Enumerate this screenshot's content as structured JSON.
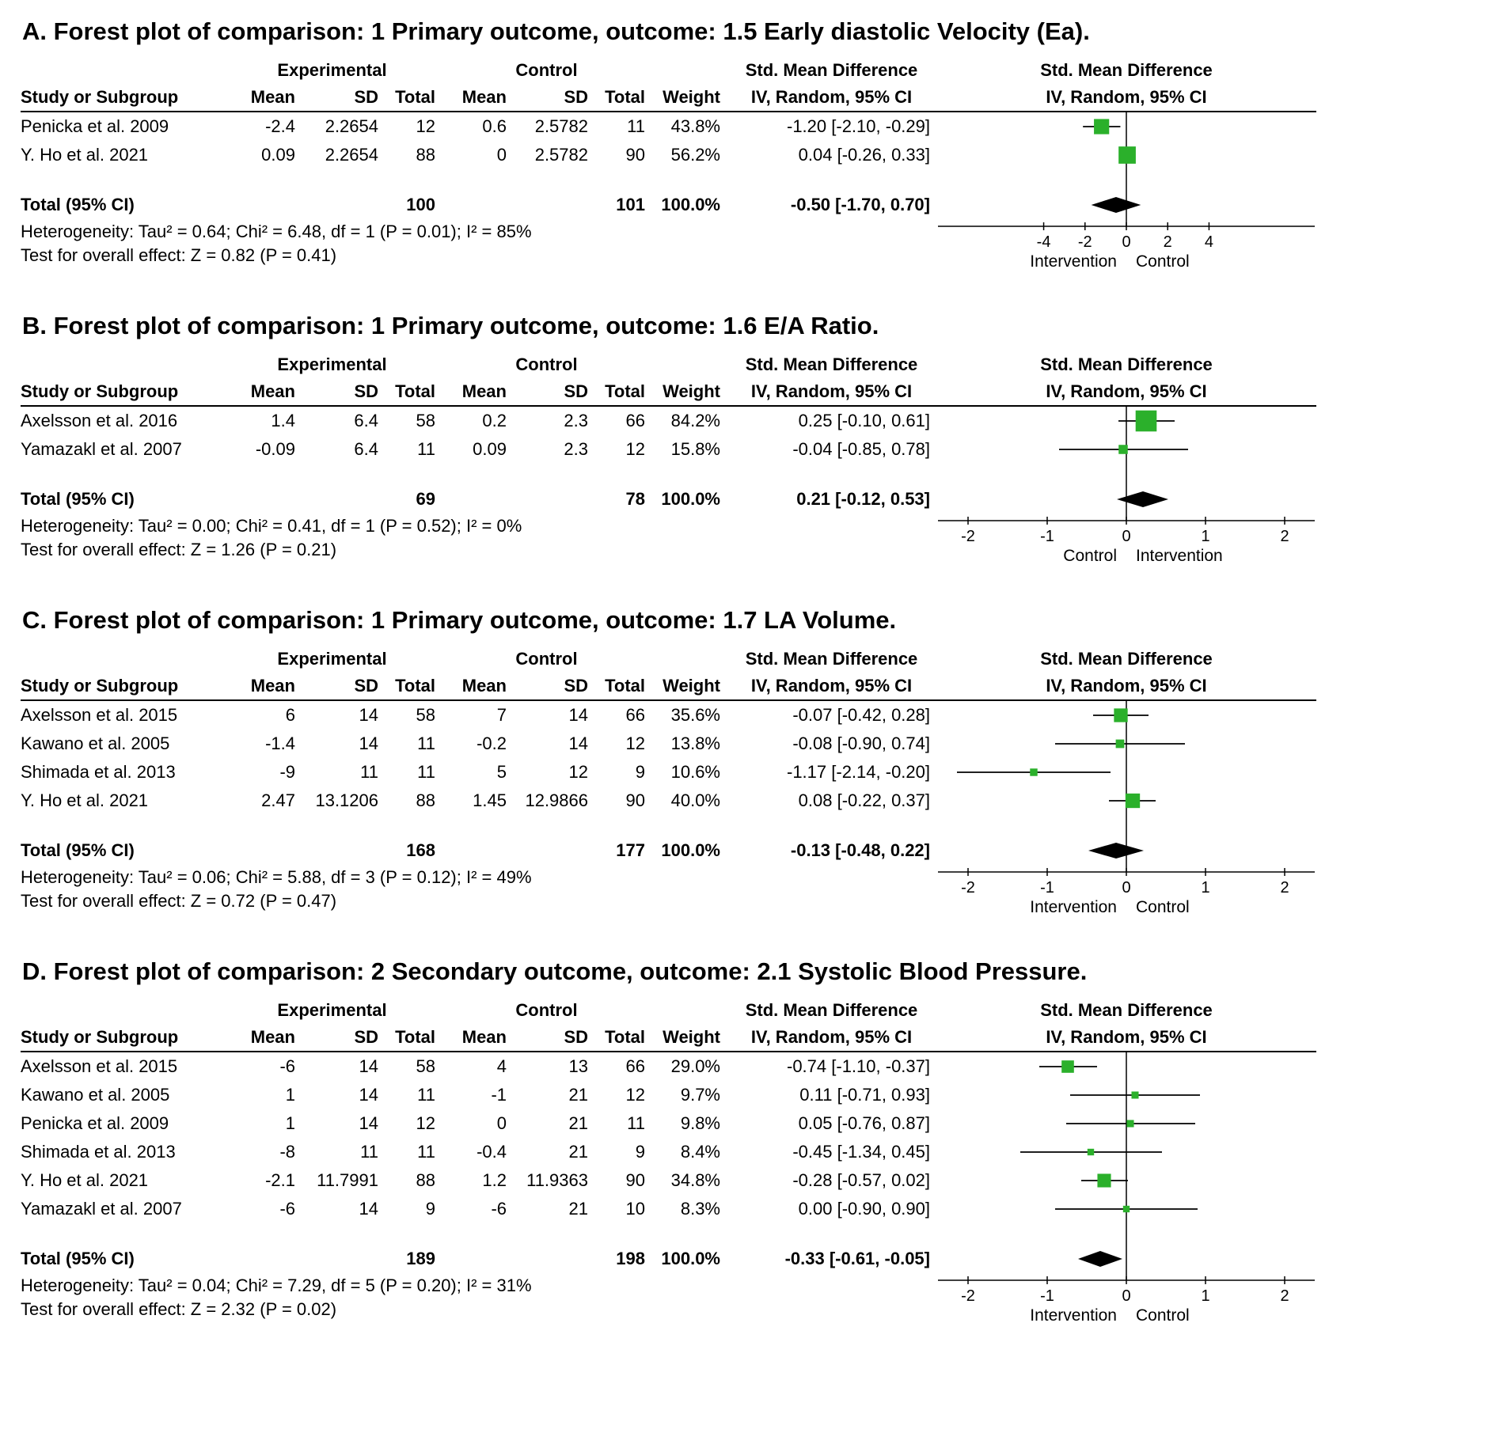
{
  "figure": {
    "marker_color": "#2bb02b",
    "line_color": "#000000",
    "diamond_color": "#000000"
  },
  "table_headers": {
    "study": "Study or Subgroup",
    "experimental": "Experimental",
    "control": "Control",
    "mean": "Mean",
    "sd": "SD",
    "total": "Total",
    "weight": "Weight",
    "smd": "Std. Mean Difference",
    "iv": "IV, Random, 95% CI"
  },
  "chart_data": [
    {
      "type": "forest",
      "panel_id": "A",
      "title": "A. Forest plot of comparison: 1 Primary outcome, outcome: 1.5 Early diastolic Velocity (Ea).",
      "studies": [
        {
          "name": "Penicka et al. 2009",
          "m1": "-2.4",
          "sd1": "2.2654",
          "t1": "12",
          "m2": "0.6",
          "sd2": "2.5782",
          "t2": "11",
          "w": "43.8%",
          "ci": "-1.20 [-2.10, -0.29]",
          "est": -1.2,
          "lo": -2.1,
          "hi": -0.29
        },
        {
          "name": "Y. Ho et al. 2021",
          "m1": "0.09",
          "sd1": "2.2654",
          "t1": "88",
          "m2": "0",
          "sd2": "2.5782",
          "t2": "90",
          "w": "56.2%",
          "ci": "0.04 [-0.26, 0.33]",
          "est": 0.04,
          "lo": -0.26,
          "hi": 0.33
        }
      ],
      "total": {
        "label": "Total (95% CI)",
        "t1": "100",
        "t2": "101",
        "w": "100.0%",
        "ci": "-0.50 [-1.70, 0.70]",
        "est": -0.5,
        "lo": -1.7,
        "hi": 0.7
      },
      "heterogeneity": "Heterogeneity: Tau² = 0.64; Chi² = 6.48, df = 1 (P = 0.01); I² = 85%",
      "overall_effect": "Test for overall effect: Z = 0.82 (P = 0.41)",
      "axis": {
        "ticks": [
          -4,
          -2,
          0,
          2,
          4
        ],
        "range": [
          -9,
          9
        ],
        "left_label": "Intervention",
        "right_label": "Control"
      }
    },
    {
      "type": "forest",
      "panel_id": "B",
      "title": "B. Forest plot of comparison: 1 Primary outcome, outcome: 1.6 E/A Ratio.",
      "studies": [
        {
          "name": "Axelsson et al. 2016",
          "m1": "1.4",
          "sd1": "6.4",
          "t1": "58",
          "m2": "0.2",
          "sd2": "2.3",
          "t2": "66",
          "w": "84.2%",
          "ci": "0.25 [-0.10, 0.61]",
          "est": 0.25,
          "lo": -0.1,
          "hi": 0.61
        },
        {
          "name": "Yamazakl et al. 2007",
          "m1": "-0.09",
          "sd1": "6.4",
          "t1": "11",
          "m2": "0.09",
          "sd2": "2.3",
          "t2": "12",
          "w": "15.8%",
          "ci": "-0.04 [-0.85, 0.78]",
          "est": -0.04,
          "lo": -0.85,
          "hi": 0.78
        }
      ],
      "total": {
        "label": "Total (95% CI)",
        "t1": "69",
        "t2": "78",
        "w": "100.0%",
        "ci": "0.21 [-0.12, 0.53]",
        "est": 0.21,
        "lo": -0.12,
        "hi": 0.53
      },
      "heterogeneity": "Heterogeneity: Tau² = 0.00; Chi² = 0.41, df = 1 (P = 0.52); I² = 0%",
      "overall_effect": "Test for overall effect: Z = 1.26 (P = 0.21)",
      "axis": {
        "ticks": [
          -2,
          -1,
          0,
          1,
          2
        ],
        "range": [
          -2.35,
          2.35
        ],
        "left_label": "Control",
        "right_label": "Intervention"
      }
    },
    {
      "type": "forest",
      "panel_id": "C",
      "title": "C. Forest plot of comparison: 1 Primary outcome, outcome: 1.7 LA Volume.",
      "studies": [
        {
          "name": "Axelsson et al. 2015",
          "m1": "6",
          "sd1": "14",
          "t1": "58",
          "m2": "7",
          "sd2": "14",
          "t2": "66",
          "w": "35.6%",
          "ci": "-0.07 [-0.42, 0.28]",
          "est": -0.07,
          "lo": -0.42,
          "hi": 0.28
        },
        {
          "name": "Kawano et al. 2005",
          "m1": "-1.4",
          "sd1": "14",
          "t1": "11",
          "m2": "-0.2",
          "sd2": "14",
          "t2": "12",
          "w": "13.8%",
          "ci": "-0.08 [-0.90, 0.74]",
          "est": -0.08,
          "lo": -0.9,
          "hi": 0.74
        },
        {
          "name": "Shimada et al. 2013",
          "m1": "-9",
          "sd1": "11",
          "t1": "11",
          "m2": "5",
          "sd2": "12",
          "t2": "9",
          "w": "10.6%",
          "ci": "-1.17 [-2.14, -0.20]",
          "est": -1.17,
          "lo": -2.14,
          "hi": -0.2
        },
        {
          "name": "Y. Ho et al. 2021",
          "m1": "2.47",
          "sd1": "13.1206",
          "t1": "88",
          "m2": "1.45",
          "sd2": "12.9866",
          "t2": "90",
          "w": "40.0%",
          "ci": "0.08 [-0.22, 0.37]",
          "est": 0.08,
          "lo": -0.22,
          "hi": 0.37
        }
      ],
      "total": {
        "label": "Total (95% CI)",
        "t1": "168",
        "t2": "177",
        "w": "100.0%",
        "ci": "-0.13 [-0.48, 0.22]",
        "est": -0.13,
        "lo": -0.48,
        "hi": 0.22
      },
      "heterogeneity": "Heterogeneity: Tau² = 0.06; Chi² = 5.88, df = 3 (P = 0.12); I² = 49%",
      "overall_effect": "Test for overall effect: Z = 0.72 (P = 0.47)",
      "axis": {
        "ticks": [
          -2,
          -1,
          0,
          1,
          2
        ],
        "range": [
          -2.35,
          2.35
        ],
        "left_label": "Intervention",
        "right_label": "Control"
      }
    },
    {
      "type": "forest",
      "panel_id": "D",
      "title": "D. Forest plot of comparison: 2 Secondary outcome, outcome: 2.1 Systolic Blood Pressure.",
      "studies": [
        {
          "name": "Axelsson et al. 2015",
          "m1": "-6",
          "sd1": "14",
          "t1": "58",
          "m2": "4",
          "sd2": "13",
          "t2": "66",
          "w": "29.0%",
          "ci": "-0.74 [-1.10, -0.37]",
          "est": -0.74,
          "lo": -1.1,
          "hi": -0.37
        },
        {
          "name": "Kawano et al. 2005",
          "m1": "1",
          "sd1": "14",
          "t1": "11",
          "m2": "-1",
          "sd2": "21",
          "t2": "12",
          "w": "9.7%",
          "ci": "0.11 [-0.71, 0.93]",
          "est": 0.11,
          "lo": -0.71,
          "hi": 0.93
        },
        {
          "name": "Penicka et al. 2009",
          "m1": "1",
          "sd1": "14",
          "t1": "12",
          "m2": "0",
          "sd2": "21",
          "t2": "11",
          "w": "9.8%",
          "ci": "0.05 [-0.76, 0.87]",
          "est": 0.05,
          "lo": -0.76,
          "hi": 0.87
        },
        {
          "name": "Shimada et al. 2013",
          "m1": "-8",
          "sd1": "11",
          "t1": "11",
          "m2": "-0.4",
          "sd2": "21",
          "t2": "9",
          "w": "8.4%",
          "ci": "-0.45 [-1.34, 0.45]",
          "est": -0.45,
          "lo": -1.34,
          "hi": 0.45
        },
        {
          "name": "Y. Ho et al. 2021",
          "m1": "-2.1",
          "sd1": "11.7991",
          "t1": "88",
          "m2": "1.2",
          "sd2": "11.9363",
          "t2": "90",
          "w": "34.8%",
          "ci": "-0.28 [-0.57, 0.02]",
          "est": -0.28,
          "lo": -0.57,
          "hi": 0.02
        },
        {
          "name": "Yamazakl et al. 2007",
          "m1": "-6",
          "sd1": "14",
          "t1": "9",
          "m2": "-6",
          "sd2": "21",
          "t2": "10",
          "w": "8.3%",
          "ci": "0.00 [-0.90, 0.90]",
          "est": 0.0,
          "lo": -0.9,
          "hi": 0.9
        }
      ],
      "total": {
        "label": "Total (95% CI)",
        "t1": "189",
        "t2": "198",
        "w": "100.0%",
        "ci": "-0.33 [-0.61, -0.05]",
        "est": -0.33,
        "lo": -0.61,
        "hi": -0.05
      },
      "heterogeneity": "Heterogeneity: Tau² = 0.04; Chi² = 7.29, df = 5 (P = 0.20); I² = 31%",
      "overall_effect": "Test for overall effect: Z = 2.32 (P = 0.02)",
      "axis": {
        "ticks": [
          -2,
          -1,
          0,
          1,
          2
        ],
        "range": [
          -2.35,
          2.35
        ],
        "left_label": "Intervention",
        "right_label": "Control"
      }
    }
  ]
}
